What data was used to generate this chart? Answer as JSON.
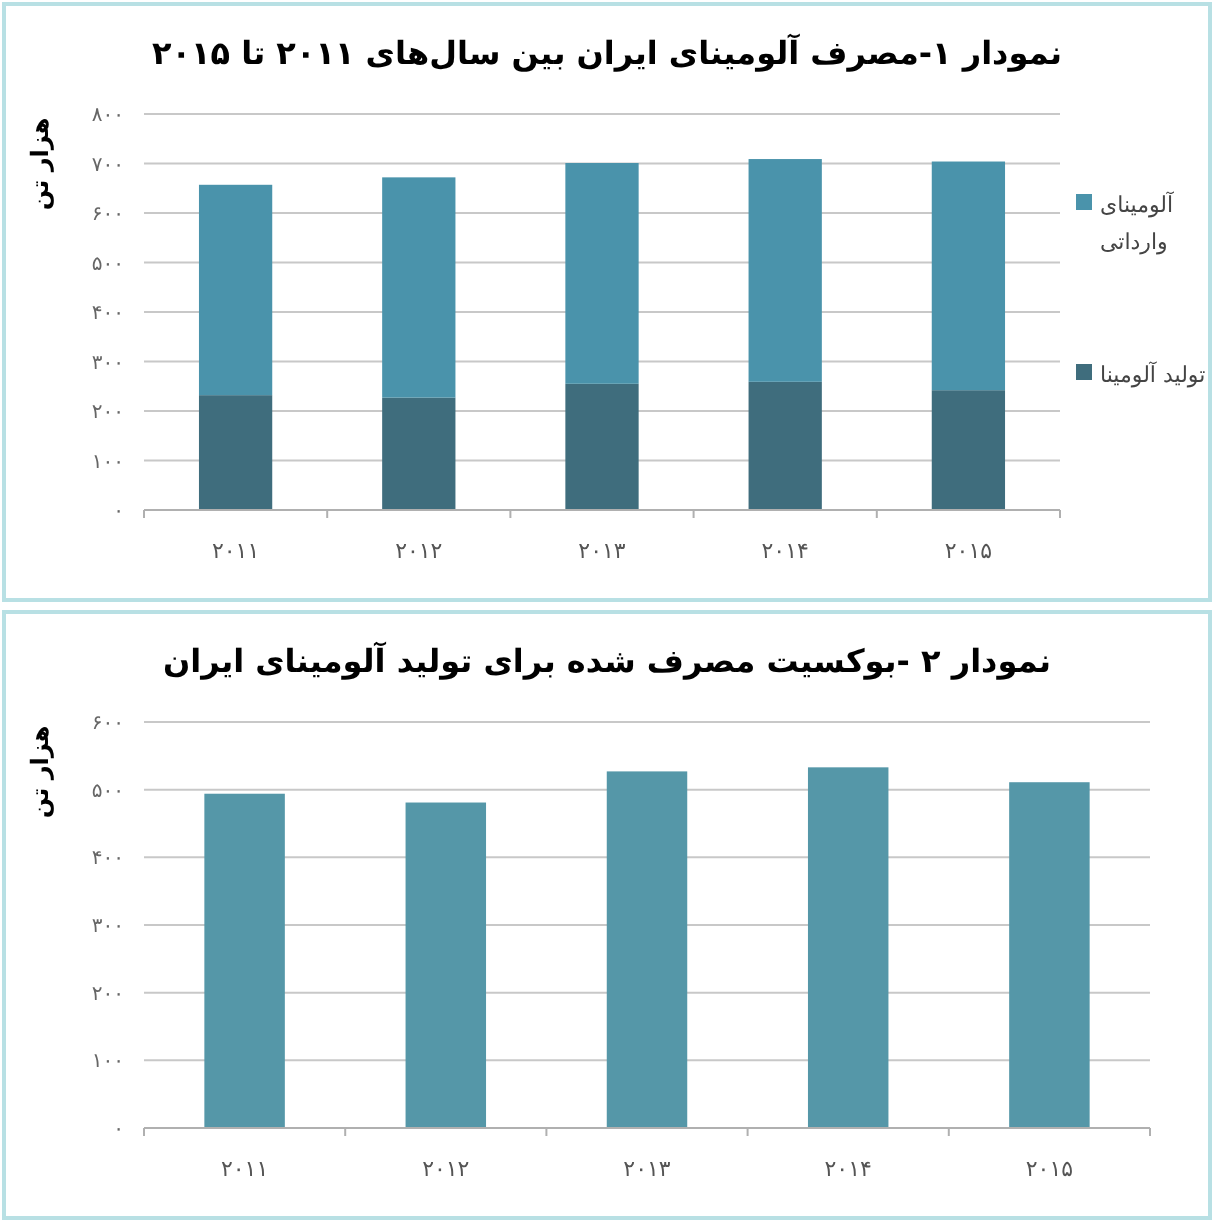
{
  "chart_data": [
    {
      "type": "bar",
      "title": "نمودار ۱-مصرف آلومینای ایران بین سال‌های ۲۰۱۱ تا ۲۰۱۵",
      "ylabel": "هزار تن",
      "categories": [
        "۲۰۱۱",
        "۲۰۱۲",
        "۲۰۱۳",
        "۲۰۱۴",
        "۲۰۱۵"
      ],
      "stacked": true,
      "series": [
        {
          "name": "تولید آلومینا",
          "color": "#3f6d7d",
          "values": [
            232,
            227,
            255,
            259,
            242
          ]
        },
        {
          "name": "آلومینای وارداتی",
          "color": "#4a93ab",
          "values": [
            425,
            445,
            446,
            450,
            462
          ]
        }
      ],
      "ylim": [
        0,
        800
      ],
      "yticks": [
        {
          "value": 0,
          "label": "۰"
        },
        {
          "value": 100,
          "label": "۱۰۰"
        },
        {
          "value": 200,
          "label": "۲۰۰"
        },
        {
          "value": 300,
          "label": "۳۰۰"
        },
        {
          "value": 400,
          "label": "۴۰۰"
        },
        {
          "value": 500,
          "label": "۵۰۰"
        },
        {
          "value": 600,
          "label": "۶۰۰"
        },
        {
          "value": 700,
          "label": "۷۰۰"
        },
        {
          "value": 800,
          "label": "۸۰۰"
        }
      ],
      "grid": "y",
      "legend": "right"
    },
    {
      "type": "bar",
      "title": "نمودار ۲ -بوکسیت مصرف شده برای تولید آلومینای ایران",
      "ylabel": "هزار تن",
      "categories": [
        "۲۰۱۱",
        "۲۰۱۲",
        "۲۰۱۳",
        "۲۰۱۴",
        "۲۰۱۵"
      ],
      "values": [
        494,
        481,
        527,
        533,
        511
      ],
      "color": "#5597a8",
      "ylim": [
        0,
        600
      ],
      "yticks": [
        {
          "value": 0,
          "label": "۰"
        },
        {
          "value": 100,
          "label": "۱۰۰"
        },
        {
          "value": 200,
          "label": "۲۰۰"
        },
        {
          "value": 300,
          "label": "۳۰۰"
        },
        {
          "value": 400,
          "label": "۴۰۰"
        },
        {
          "value": 500,
          "label": "۵۰۰"
        },
        {
          "value": 600,
          "label": "۶۰۰"
        }
      ],
      "grid": "y"
    }
  ]
}
